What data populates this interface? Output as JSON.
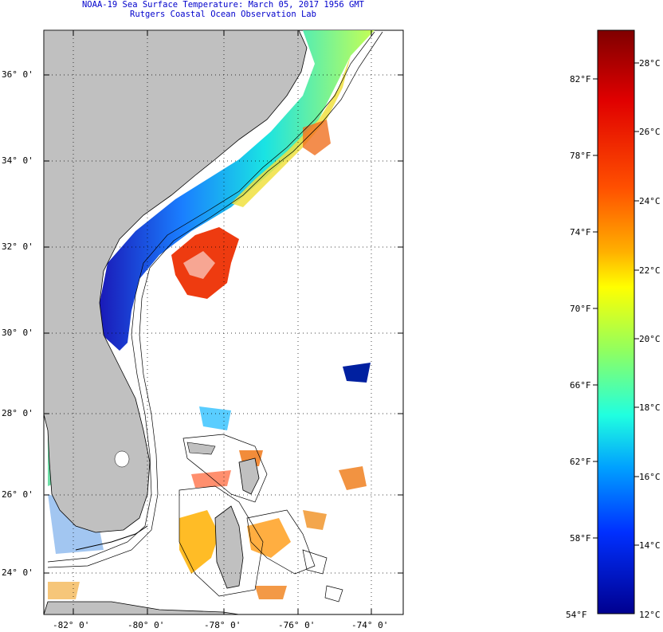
{
  "title": {
    "line1": "NOAA-19 Sea Surface Temperature:  March 05, 2017 1956 GMT",
    "line2": "Rutgers Coastal Ocean Observation Lab"
  },
  "map": {
    "lat_labels": [
      "36° 0'",
      "34° 0'",
      "32° 0'",
      "30° 0'",
      "28° 0'",
      "26° 0'",
      "24° 0'"
    ],
    "lon_labels": [
      "-82° 0'",
      "-80° 0'",
      "-78° 0'",
      "-76° 0'",
      "-74° 0'"
    ],
    "land_color": "#c0c0c0"
  },
  "colorbar": {
    "fahrenheit": [
      "82°F",
      "78°F",
      "74°F",
      "70°F",
      "66°F",
      "62°F",
      "58°F"
    ],
    "celsius": [
      "28°C",
      "26°C",
      "24°C",
      "22°C",
      "20°C",
      "18°C",
      "16°C",
      "14°C"
    ],
    "min_f": "54°F",
    "min_c": "12°C",
    "colors": [
      "#7f0000",
      "#e00000",
      "#ff5000",
      "#ffb000",
      "#ffff00",
      "#90ff60",
      "#20ffe0",
      "#00a0ff",
      "#0030ff",
      "#00008f"
    ]
  }
}
